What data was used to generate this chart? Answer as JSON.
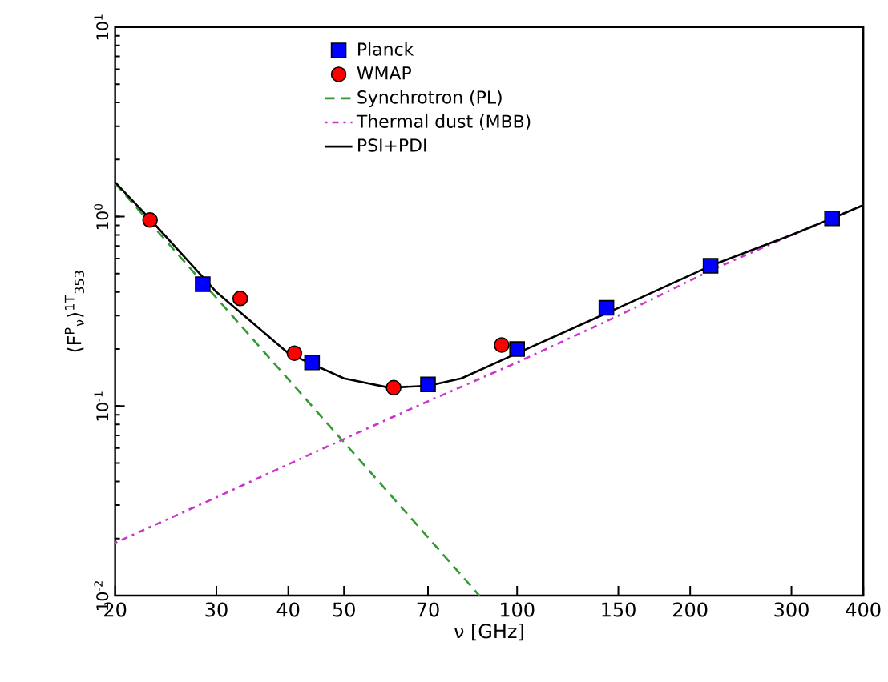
{
  "chart_data": {
    "type": "scatter",
    "xlabel": "ν [GHz]",
    "ylabel": "⟨F$^{P}$$_{ν}$⟩$^{1T}$$_{353}$",
    "log": "xy",
    "legend": "top",
    "grid": false,
    "xlim": [
      20,
      400
    ],
    "xticks": [
      20,
      30,
      40,
      50,
      70,
      100,
      150,
      200,
      300,
      400
    ],
    "ylim": [
      0.01,
      10
    ],
    "yticks": [
      {
        "value": 0.01,
        "label": "10$^{-2}$"
      },
      {
        "value": 0.1,
        "label": "10$^{-1}$"
      },
      {
        "value": 1,
        "label": "10$^{0}$"
      },
      {
        "value": 10,
        "label": "10$^{1}$"
      }
    ],
    "series": [
      {
        "name": "Planck",
        "marker": "square",
        "color": "#0000ff",
        "x": [
          28.4,
          44,
          70,
          100,
          143,
          217,
          353
        ],
        "values": [
          0.44,
          0.17,
          0.13,
          0.2,
          0.33,
          0.55,
          0.98
        ]
      },
      {
        "name": "WMAP",
        "marker": "circle",
        "color": "#ff0000",
        "x": [
          23,
          33,
          41,
          61,
          94
        ],
        "values": [
          0.96,
          0.37,
          0.19,
          0.125,
          0.21
        ]
      },
      {
        "name": "Synchrotron (PL)",
        "type": "line",
        "line_style": "dashed",
        "color": "#339933",
        "x": [
          20,
          86
        ],
        "values": [
          1.5,
          0.01
        ]
      },
      {
        "name": "Thermal dust (MBB)",
        "type": "line",
        "line_style": "dotted",
        "color": "#cc33cc",
        "x": [
          20,
          30,
          45,
          67,
          100,
          150,
          217,
          300,
          353,
          400
        ],
        "values": [
          0.019,
          0.033,
          0.058,
          0.1,
          0.17,
          0.3,
          0.52,
          0.8,
          0.98,
          1.15
        ]
      },
      {
        "name": "PSI+PDI",
        "type": "line",
        "line_style": "solid",
        "color": "#000000",
        "x": [
          20,
          23,
          30,
          40,
          50,
          60,
          70,
          80,
          100,
          150,
          217,
          300,
          353,
          400
        ],
        "values": [
          1.52,
          0.97,
          0.4,
          0.19,
          0.14,
          0.125,
          0.128,
          0.14,
          0.19,
          0.33,
          0.55,
          0.8,
          0.98,
          1.15
        ]
      }
    ]
  }
}
